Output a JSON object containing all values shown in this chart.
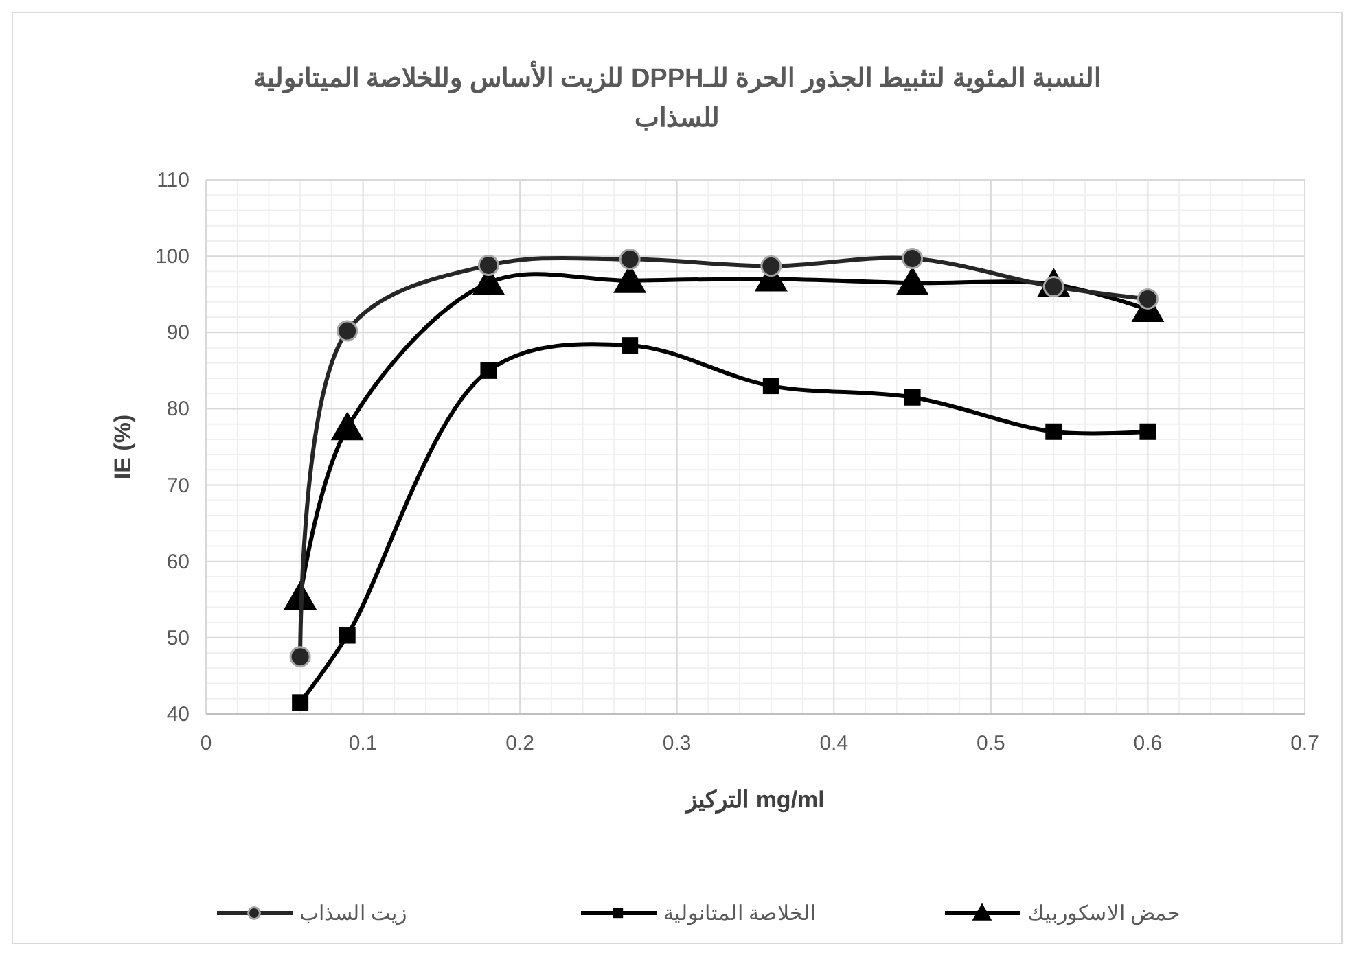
{
  "chart_data": {
    "type": "line",
    "title": "النسبة المئوية لتثبيط الجذور الحرة للـDPPH للزيت الأساس وللخلاصة الميتانولية للسذاب",
    "xlabel": "التركيز mg/ml",
    "ylabel": "IE (%)",
    "x": [
      0.06,
      0.09,
      0.18,
      0.27,
      0.36,
      0.45,
      0.54,
      0.6
    ],
    "series": [
      {
        "name": "حمض الاسكوربيك",
        "color": "#000000",
        "marker": "triangle",
        "values": [
          55.3,
          77.5,
          96.5,
          96.8,
          97,
          96.5,
          96.3,
          93
        ]
      },
      {
        "name": "الخلاصة المتانولية",
        "color": "#000000",
        "marker": "square",
        "values": [
          41.5,
          50.3,
          85,
          88.3,
          83,
          81.5,
          77,
          77
        ]
      },
      {
        "name": "زيت السذاب",
        "color": "#262626",
        "marker": "circle",
        "values": [
          47.5,
          90.2,
          98.8,
          99.6,
          98.7,
          99.7,
          96,
          94.4
        ]
      }
    ],
    "xlim": [
      0,
      0.7
    ],
    "xticks": [
      0,
      0.1,
      0.2,
      0.3,
      0.4,
      0.5,
      0.6,
      0.7
    ],
    "ylim": [
      40,
      110
    ],
    "yticks": [
      40,
      50,
      60,
      70,
      80,
      90,
      100,
      110
    ],
    "grid": true,
    "legend": "bottom",
    "line_style": "solid"
  }
}
